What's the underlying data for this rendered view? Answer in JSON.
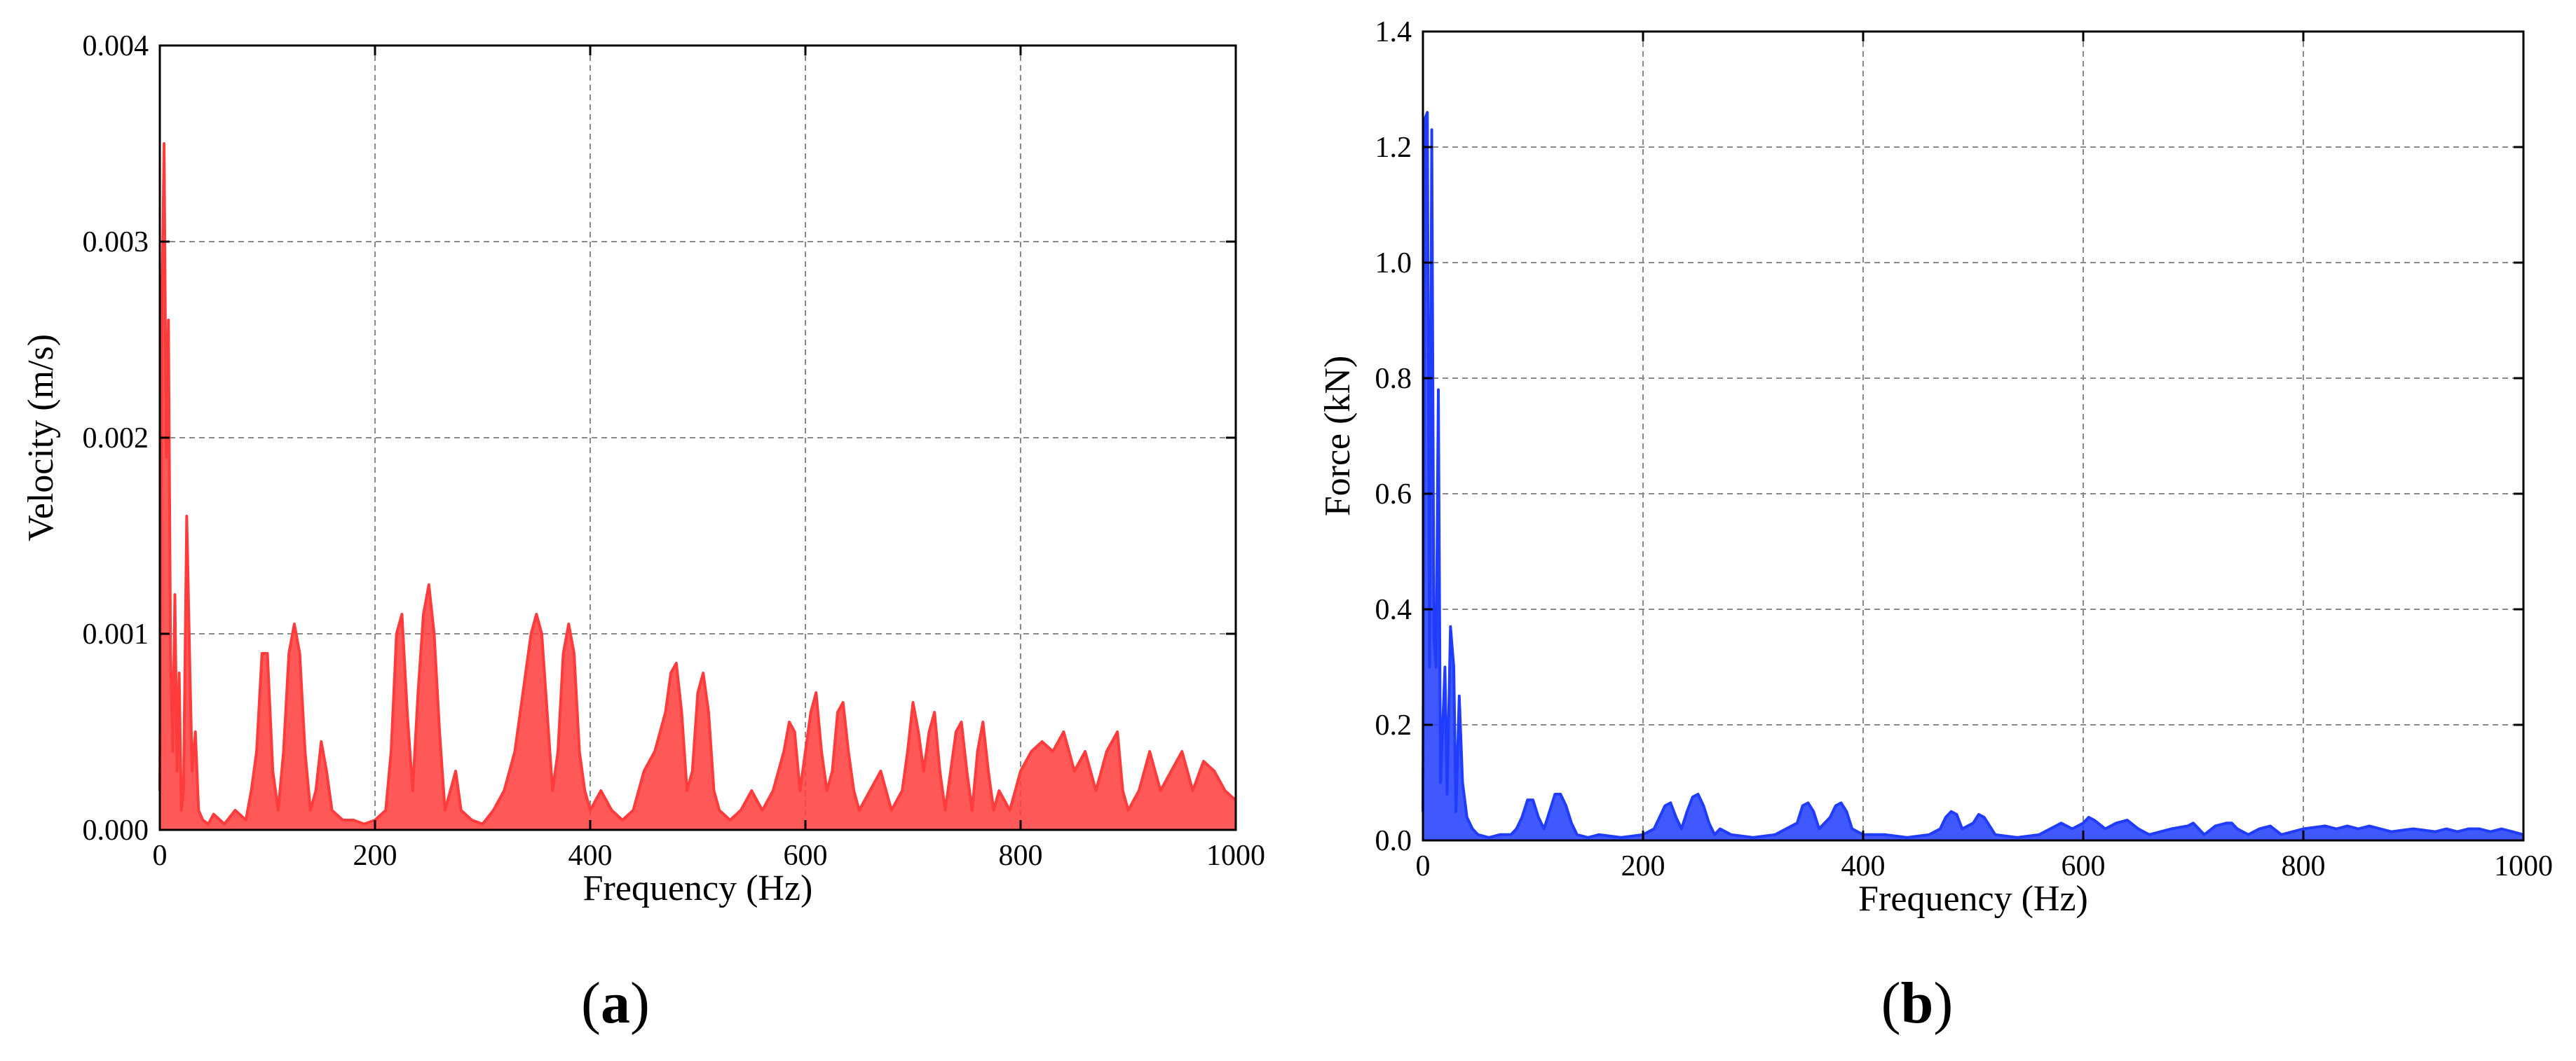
{
  "figure": {
    "panel_labels": [
      "(a)",
      "(b)"
    ]
  },
  "chart_data": [
    {
      "type": "line",
      "panel": "(a)",
      "title": "",
      "xlabel": "Frequency (Hz)",
      "ylabel": "Velocity (m/s)",
      "xlim": [
        0,
        1000
      ],
      "ylim": [
        0,
        0.004
      ],
      "xticks": [
        0,
        200,
        400,
        600,
        800,
        1000
      ],
      "xtick_labels": [
        "0",
        "200",
        "400",
        "600",
        "800",
        "1000"
      ],
      "yticks": [
        0,
        0.001,
        0.002,
        0.003,
        0.004
      ],
      "ytick_labels": [
        "0.000",
        "0.001",
        "0.002",
        "0.003",
        "0.004"
      ],
      "grid": true,
      "grid_style": "dashed",
      "line_color": "#ff3b3b",
      "series_x": [
        0,
        2,
        4,
        6,
        8,
        10,
        12,
        14,
        16,
        18,
        20,
        22,
        25,
        28,
        30,
        33,
        36,
        40,
        45,
        50,
        60,
        70,
        80,
        85,
        90,
        95,
        100,
        105,
        110,
        115,
        120,
        125,
        130,
        135,
        140,
        145,
        150,
        155,
        160,
        170,
        180,
        190,
        200,
        210,
        215,
        220,
        225,
        230,
        235,
        240,
        245,
        250,
        255,
        260,
        265,
        270,
        275,
        280,
        290,
        300,
        310,
        320,
        330,
        340,
        345,
        350,
        355,
        360,
        365,
        370,
        375,
        380,
        385,
        390,
        395,
        400,
        410,
        420,
        430,
        440,
        450,
        460,
        470,
        475,
        480,
        485,
        490,
        495,
        500,
        505,
        510,
        515,
        520,
        530,
        540,
        550,
        560,
        570,
        580,
        585,
        590,
        595,
        600,
        605,
        610,
        615,
        620,
        625,
        630,
        635,
        640,
        645,
        650,
        660,
        670,
        680,
        690,
        695,
        700,
        705,
        710,
        715,
        720,
        725,
        730,
        735,
        740,
        745,
        750,
        755,
        760,
        765,
        770,
        775,
        780,
        790,
        800,
        810,
        820,
        830,
        840,
        850,
        860,
        870,
        880,
        890,
        895,
        900,
        910,
        920,
        930,
        940,
        950,
        960,
        970,
        980,
        990,
        1000
      ],
      "series_y": [
        0.0002,
        0.0027,
        0.0035,
        0.0019,
        0.0026,
        0.0009,
        0.0004,
        0.0012,
        0.0003,
        0.0008,
        0.0001,
        0.0002,
        0.0016,
        0.0008,
        0.0003,
        0.0005,
        0.0001,
        5e-05,
        3e-05,
        8e-05,
        3e-05,
        0.0001,
        5e-05,
        0.0002,
        0.0004,
        0.0009,
        0.0009,
        0.0003,
        0.0001,
        0.0004,
        0.0009,
        0.00105,
        0.0009,
        0.0004,
        0.0001,
        0.0002,
        0.00045,
        0.0003,
        0.0001,
        5e-05,
        5e-05,
        3e-05,
        5e-05,
        0.0001,
        0.0004,
        0.001,
        0.0011,
        0.0006,
        0.0002,
        0.0007,
        0.0011,
        0.00125,
        0.001,
        0.0005,
        0.0001,
        0.0002,
        0.0003,
        0.0001,
        5e-05,
        3e-05,
        0.0001,
        0.0002,
        0.0004,
        0.0008,
        0.001,
        0.0011,
        0.001,
        0.0006,
        0.0002,
        0.0004,
        0.0009,
        0.00105,
        0.0009,
        0.0004,
        0.0002,
        0.0001,
        0.0002,
        0.0001,
        5e-05,
        0.0001,
        0.0003,
        0.0004,
        0.0006,
        0.0008,
        0.00085,
        0.0006,
        0.0002,
        0.0003,
        0.0007,
        0.0008,
        0.0006,
        0.0002,
        0.0001,
        5e-05,
        0.0001,
        0.0002,
        0.0001,
        0.0002,
        0.0004,
        0.00055,
        0.0005,
        0.0002,
        0.0004,
        0.0006,
        0.0007,
        0.0004,
        0.0002,
        0.0003,
        0.0006,
        0.00065,
        0.0004,
        0.0002,
        0.0001,
        0.0002,
        0.0003,
        0.0001,
        0.0002,
        0.0004,
        0.00065,
        0.0005,
        0.0003,
        0.0005,
        0.0006,
        0.0003,
        0.0001,
        0.0003,
        0.0005,
        0.00055,
        0.0003,
        0.0001,
        0.0004,
        0.00055,
        0.0003,
        0.0001,
        0.0002,
        0.0001,
        0.0003,
        0.0004,
        0.00045,
        0.0004,
        0.0005,
        0.0003,
        0.0004,
        0.0002,
        0.0004,
        0.0005,
        0.0002,
        0.0001,
        0.0002,
        0.0004,
        0.0002,
        0.0003,
        0.0004,
        0.0002,
        0.00035,
        0.0003,
        0.0002,
        0.00015
      ]
    },
    {
      "type": "line",
      "panel": "(b)",
      "title": "",
      "xlabel": "Frequency (Hz)",
      "ylabel": "Force (kN)",
      "xlim": [
        0,
        1000
      ],
      "ylim": [
        0,
        1.4
      ],
      "xticks": [
        0,
        200,
        400,
        600,
        800,
        1000
      ],
      "xtick_labels": [
        "0",
        "200",
        "400",
        "600",
        "800",
        "1000"
      ],
      "yticks": [
        0,
        0.2,
        0.4,
        0.6,
        0.8,
        1.0,
        1.2,
        1.4
      ],
      "ytick_labels": [
        "0.0",
        "0.2",
        "0.4",
        "0.6",
        "0.8",
        "1.0",
        "1.2",
        "1.4"
      ],
      "grid": true,
      "grid_style": "dashed",
      "line_color": "#1f3cff",
      "series_x": [
        0,
        2,
        4,
        6,
        8,
        10,
        12,
        14,
        16,
        18,
        20,
        22,
        25,
        28,
        30,
        33,
        36,
        40,
        45,
        50,
        60,
        70,
        80,
        85,
        90,
        95,
        100,
        105,
        110,
        115,
        120,
        125,
        130,
        135,
        140,
        150,
        160,
        180,
        200,
        210,
        215,
        220,
        225,
        230,
        235,
        240,
        245,
        250,
        255,
        260,
        265,
        270,
        280,
        300,
        320,
        340,
        345,
        350,
        355,
        360,
        370,
        375,
        380,
        385,
        390,
        400,
        420,
        440,
        460,
        470,
        475,
        480,
        485,
        490,
        500,
        505,
        510,
        520,
        540,
        560,
        570,
        580,
        590,
        600,
        605,
        610,
        620,
        630,
        640,
        650,
        660,
        680,
        695,
        700,
        705,
        710,
        720,
        730,
        735,
        740,
        750,
        760,
        770,
        780,
        800,
        820,
        830,
        840,
        850,
        860,
        870,
        880,
        900,
        920,
        930,
        940,
        950,
        960,
        970,
        980,
        990,
        1000
      ],
      "series_y": [
        0.05,
        1.25,
        1.26,
        0.3,
        1.23,
        0.35,
        0.3,
        0.78,
        0.1,
        0.2,
        0.3,
        0.08,
        0.37,
        0.3,
        0.05,
        0.25,
        0.1,
        0.04,
        0.02,
        0.01,
        0.005,
        0.01,
        0.01,
        0.02,
        0.04,
        0.07,
        0.07,
        0.04,
        0.02,
        0.05,
        0.08,
        0.08,
        0.06,
        0.03,
        0.01,
        0.005,
        0.01,
        0.005,
        0.01,
        0.02,
        0.04,
        0.06,
        0.065,
        0.04,
        0.02,
        0.05,
        0.075,
        0.08,
        0.06,
        0.03,
        0.01,
        0.02,
        0.01,
        0.005,
        0.01,
        0.03,
        0.06,
        0.065,
        0.05,
        0.02,
        0.04,
        0.06,
        0.065,
        0.05,
        0.02,
        0.01,
        0.01,
        0.005,
        0.01,
        0.02,
        0.04,
        0.05,
        0.045,
        0.02,
        0.03,
        0.045,
        0.04,
        0.01,
        0.005,
        0.01,
        0.02,
        0.03,
        0.02,
        0.03,
        0.04,
        0.035,
        0.02,
        0.03,
        0.035,
        0.02,
        0.01,
        0.02,
        0.025,
        0.03,
        0.02,
        0.01,
        0.025,
        0.03,
        0.03,
        0.02,
        0.01,
        0.02,
        0.025,
        0.01,
        0.02,
        0.025,
        0.02,
        0.025,
        0.02,
        0.025,
        0.02,
        0.015,
        0.02,
        0.015,
        0.02,
        0.015,
        0.02,
        0.02,
        0.015,
        0.02,
        0.015,
        0.01
      ]
    }
  ]
}
